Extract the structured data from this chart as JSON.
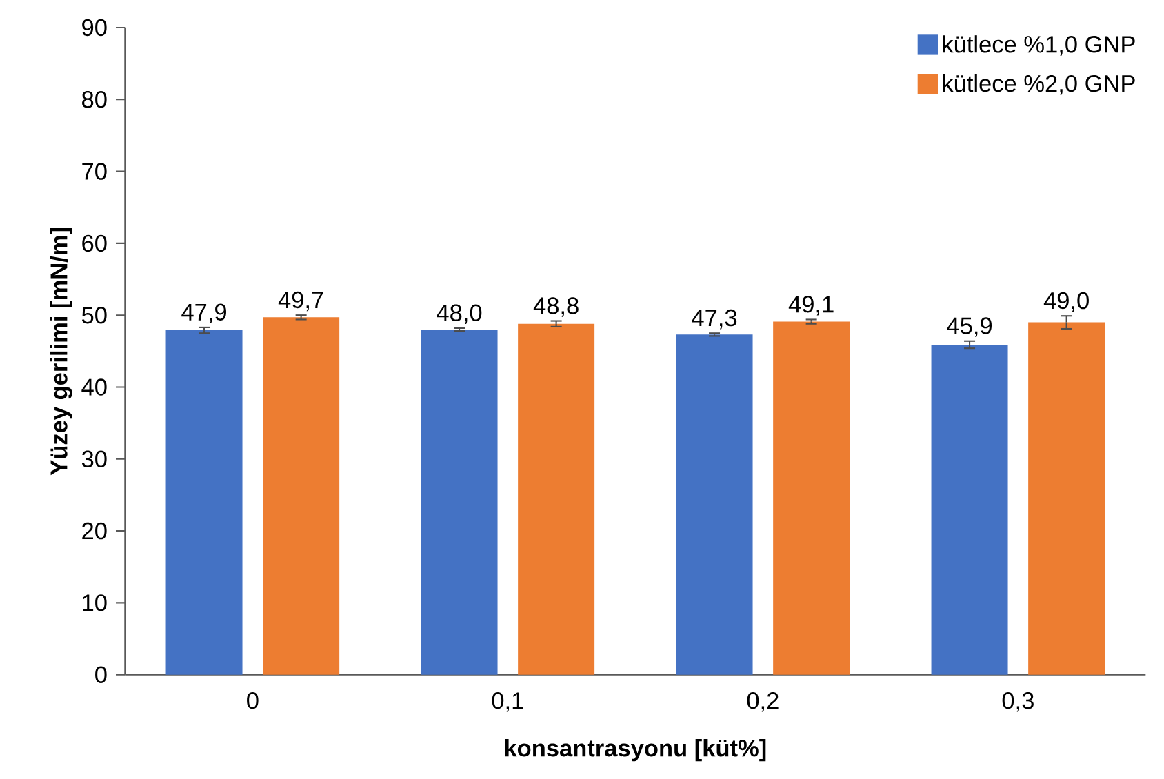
{
  "chart_data": {
    "type": "bar",
    "xlabel": "konsantrasyonu [küt%]",
    "ylabel": "Yüzey gerilimi [mN/m]",
    "categories": [
      "0",
      "0,1",
      "0,2",
      "0,3"
    ],
    "series": [
      {
        "name": "kütlece %1,0 GNP",
        "color": "#4472c4",
        "values": [
          47.9,
          48.0,
          47.3,
          45.9
        ],
        "errors": [
          0.4,
          0.2,
          0.2,
          0.5
        ],
        "value_labels": [
          "47,9",
          "48,0",
          "47,3",
          "45,9"
        ]
      },
      {
        "name": "kütlece %2,0 GNP",
        "color": "#ed7d31",
        "values": [
          49.7,
          48.8,
          49.1,
          49.0
        ],
        "errors": [
          0.3,
          0.4,
          0.3,
          0.9
        ],
        "value_labels": [
          "49,7",
          "48,8",
          "49,1",
          "49,0"
        ]
      }
    ],
    "ylim": [
      0,
      90
    ],
    "yticks": [
      0,
      10,
      20,
      30,
      40,
      50,
      60,
      70,
      80,
      90
    ],
    "grid": false,
    "legend": "top right"
  }
}
